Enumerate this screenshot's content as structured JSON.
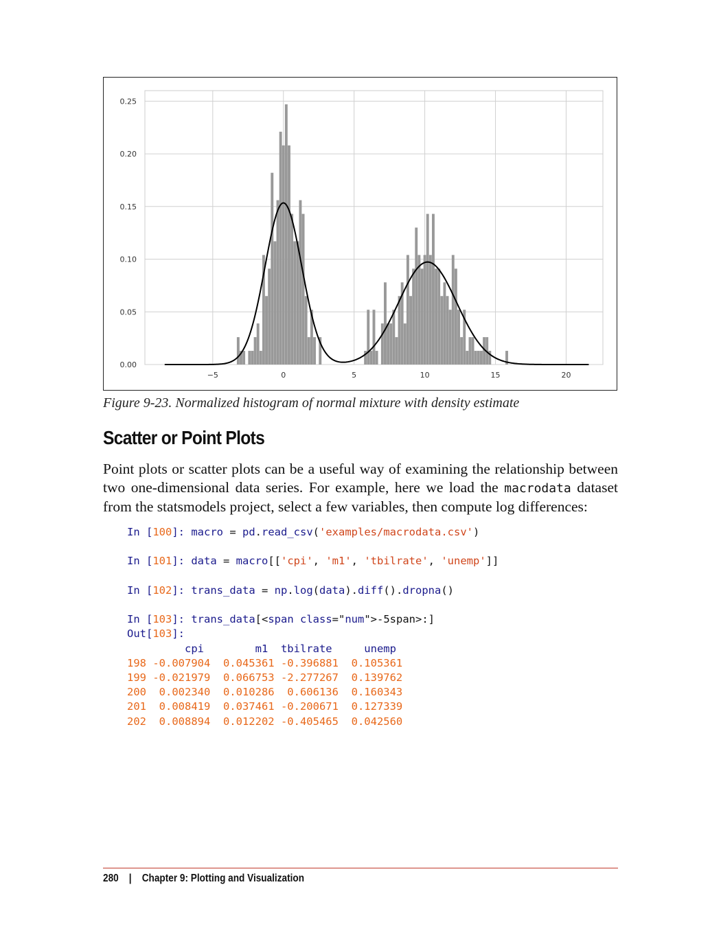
{
  "chart_data": {
    "type": "bar",
    "title": "",
    "xlabel": "",
    "ylabel": "",
    "xlim": [
      -9.8,
      22.6
    ],
    "ylim": [
      0,
      0.26
    ],
    "x_ticks": [
      {
        "v": -5,
        "label": "−5"
      },
      {
        "v": 0,
        "label": "0"
      },
      {
        "v": 5,
        "label": "5"
      },
      {
        "v": 10,
        "label": "10"
      },
      {
        "v": 15,
        "label": "15"
      },
      {
        "v": 20,
        "label": "20"
      }
    ],
    "y_ticks": [
      {
        "v": 0.0,
        "label": "0.00"
      },
      {
        "v": 0.05,
        "label": "0.05"
      },
      {
        "v": 0.1,
        "label": "0.10"
      },
      {
        "v": 0.15,
        "label": "0.15"
      },
      {
        "v": 0.2,
        "label": "0.20"
      },
      {
        "v": 0.25,
        "label": "0.25"
      }
    ],
    "grid": true,
    "bar_color": "#999999",
    "line_color": "#000000",
    "histogram": {
      "bin_width": 0.19,
      "bins": [
        {
          "x": -3.2,
          "h": 0.026
        },
        {
          "x": -3.0,
          "h": 0.013
        },
        {
          "x": -2.8,
          "h": 0.013
        },
        {
          "x": -2.4,
          "h": 0.013
        },
        {
          "x": -2.2,
          "h": 0.013
        },
        {
          "x": -2.0,
          "h": 0.026
        },
        {
          "x": -1.8,
          "h": 0.039
        },
        {
          "x": -1.6,
          "h": 0.013
        },
        {
          "x": -1.4,
          "h": 0.104
        },
        {
          "x": -1.2,
          "h": 0.065
        },
        {
          "x": -1.0,
          "h": 0.091
        },
        {
          "x": -0.8,
          "h": 0.182
        },
        {
          "x": -0.6,
          "h": 0.117
        },
        {
          "x": -0.4,
          "h": 0.156
        },
        {
          "x": -0.2,
          "h": 0.221
        },
        {
          "x": 0.0,
          "h": 0.208
        },
        {
          "x": 0.2,
          "h": 0.247
        },
        {
          "x": 0.4,
          "h": 0.208
        },
        {
          "x": 0.6,
          "h": 0.143
        },
        {
          "x": 0.8,
          "h": 0.117
        },
        {
          "x": 1.0,
          "h": 0.117
        },
        {
          "x": 1.2,
          "h": 0.156
        },
        {
          "x": 1.4,
          "h": 0.143
        },
        {
          "x": 1.6,
          "h": 0.065
        },
        {
          "x": 1.8,
          "h": 0.026
        },
        {
          "x": 2.0,
          "h": 0.052
        },
        {
          "x": 2.2,
          "h": 0.026
        },
        {
          "x": 2.6,
          "h": 0.026
        },
        {
          "x": 5.8,
          "h": 0.013
        },
        {
          "x": 6.0,
          "h": 0.052
        },
        {
          "x": 6.2,
          "h": 0.013
        },
        {
          "x": 6.4,
          "h": 0.052
        },
        {
          "x": 6.6,
          "h": 0.013
        },
        {
          "x": 7.0,
          "h": 0.039
        },
        {
          "x": 7.2,
          "h": 0.078
        },
        {
          "x": 7.4,
          "h": 0.039
        },
        {
          "x": 7.6,
          "h": 0.039
        },
        {
          "x": 7.8,
          "h": 0.052
        },
        {
          "x": 8.0,
          "h": 0.026
        },
        {
          "x": 8.2,
          "h": 0.065
        },
        {
          "x": 8.4,
          "h": 0.078
        },
        {
          "x": 8.6,
          "h": 0.039
        },
        {
          "x": 8.8,
          "h": 0.104
        },
        {
          "x": 9.0,
          "h": 0.065
        },
        {
          "x": 9.2,
          "h": 0.091
        },
        {
          "x": 9.4,
          "h": 0.13
        },
        {
          "x": 9.6,
          "h": 0.104
        },
        {
          "x": 9.8,
          "h": 0.091
        },
        {
          "x": 10.0,
          "h": 0.104
        },
        {
          "x": 10.2,
          "h": 0.143
        },
        {
          "x": 10.4,
          "h": 0.104
        },
        {
          "x": 10.6,
          "h": 0.143
        },
        {
          "x": 10.8,
          "h": 0.091
        },
        {
          "x": 11.0,
          "h": 0.091
        },
        {
          "x": 11.2,
          "h": 0.065
        },
        {
          "x": 11.4,
          "h": 0.078
        },
        {
          "x": 11.6,
          "h": 0.065
        },
        {
          "x": 11.8,
          "h": 0.052
        },
        {
          "x": 12.0,
          "h": 0.104
        },
        {
          "x": 12.2,
          "h": 0.091
        },
        {
          "x": 12.4,
          "h": 0.052
        },
        {
          "x": 12.6,
          "h": 0.026
        },
        {
          "x": 12.8,
          "h": 0.052
        },
        {
          "x": 13.0,
          "h": 0.013
        },
        {
          "x": 13.2,
          "h": 0.026
        },
        {
          "x": 13.4,
          "h": 0.026
        },
        {
          "x": 13.6,
          "h": 0.013
        },
        {
          "x": 13.8,
          "h": 0.013
        },
        {
          "x": 14.0,
          "h": 0.013
        },
        {
          "x": 14.2,
          "h": 0.026
        },
        {
          "x": 14.4,
          "h": 0.026
        },
        {
          "x": 14.6,
          "h": 0.013
        },
        {
          "x": 15.8,
          "h": 0.013
        }
      ]
    },
    "density": {
      "name": "density estimate",
      "components": [
        {
          "weight": 0.5,
          "mean": 0.0,
          "sd": 1.3
        },
        {
          "weight": 0.5,
          "mean": 10.2,
          "sd": 2.05
        }
      ],
      "x_range": [
        -8.4,
        21.6
      ]
    }
  },
  "caption": "Figure 9-23. Normalized histogram of normal mixture with density estimate",
  "heading": "Scatter or Point Plots",
  "paragraph": {
    "before": "Point plots or scatter plots can be a useful way of examining the relationship between two one-dimensional data series. For example, here we load the ",
    "code": "macrodata",
    "after": " dataset from the statsmodels project, select a few variables, then compute log differences:"
  },
  "code_cells": {
    "c100": {
      "n": "100",
      "code": "macro = pd.read_csv('examples/macrodata.csv')"
    },
    "c101": {
      "n": "101",
      "code": "data = macro[['cpi', 'm1', 'tbilrate', 'unemp']]"
    },
    "c102": {
      "n": "102",
      "code": "trans_data = np.log(data).diff().dropna()"
    },
    "c103": {
      "n": "103",
      "code": "trans_data[-5:]"
    },
    "out_n": "103"
  },
  "table": {
    "header": "         cpi        m1  tbilrate     unemp",
    "rows": [
      "198 -0.007904  0.045361 -0.396881  0.105361",
      "199 -0.021979  0.066753 -2.277267  0.139762",
      "200  0.002340  0.010286  0.606136  0.160343",
      "201  0.008419  0.037461 -0.200671  0.127339",
      "202  0.008894  0.012202 -0.405465  0.042560"
    ]
  },
  "footer": {
    "page": "280",
    "separator": "|",
    "chapter": "Chapter 9: Plotting and Visualization"
  }
}
